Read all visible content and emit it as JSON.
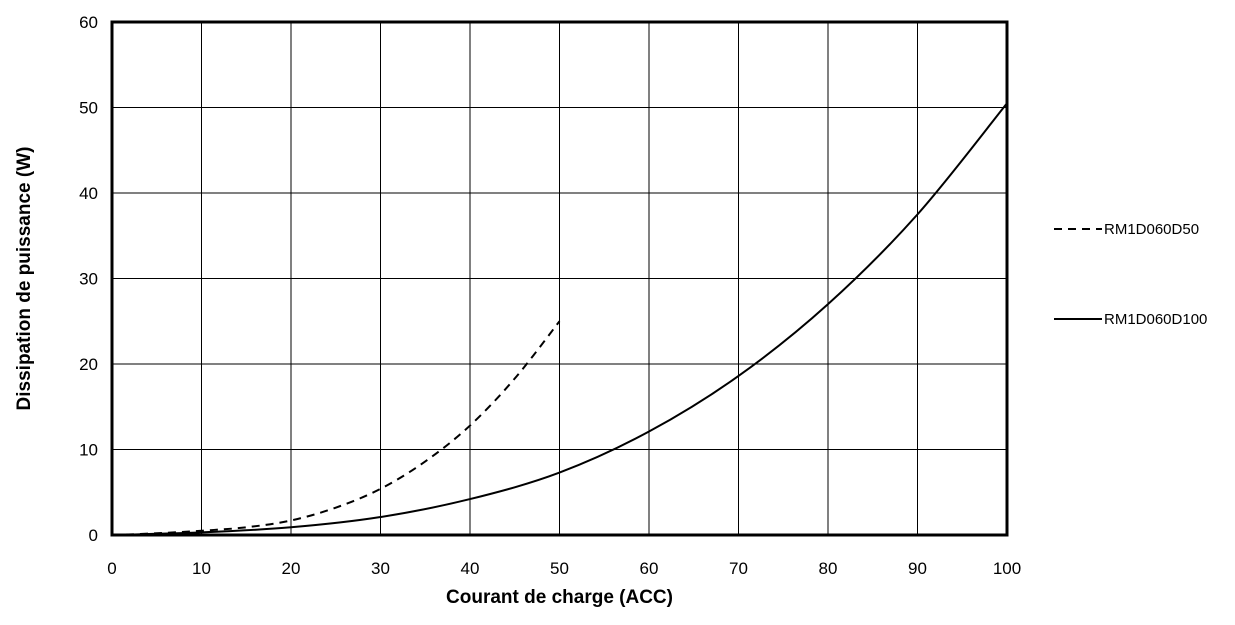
{
  "chart_data": {
    "type": "line",
    "title": "",
    "xlabel": "Courant de charge (ACC)",
    "ylabel": "Dissipation de puissance (W)",
    "xlim": [
      0,
      100
    ],
    "ylim": [
      0,
      60
    ],
    "x_ticks": [
      0,
      10,
      20,
      30,
      40,
      50,
      60,
      70,
      80,
      90,
      100
    ],
    "y_ticks": [
      0,
      10,
      20,
      30,
      40,
      50,
      60
    ],
    "grid": true,
    "legend": "right",
    "series": [
      {
        "name": "RM1D060D50",
        "style": "dashed",
        "color": "#000000",
        "x": [
          0,
          5,
          10,
          15,
          20,
          25,
          30,
          35,
          40,
          45,
          50
        ],
        "y": [
          0,
          0.2,
          0.5,
          0.9,
          1.7,
          3.2,
          5.4,
          8.6,
          12.8,
          18.3,
          25.0
        ]
      },
      {
        "name": "RM1D060D100",
        "style": "solid",
        "color": "#000000",
        "x": [
          0,
          10,
          20,
          30,
          40,
          50,
          60,
          70,
          80,
          90,
          100
        ],
        "y": [
          0,
          0.3,
          0.9,
          2.1,
          4.2,
          7.3,
          12.1,
          18.6,
          27.0,
          37.5,
          50.5
        ]
      }
    ]
  }
}
